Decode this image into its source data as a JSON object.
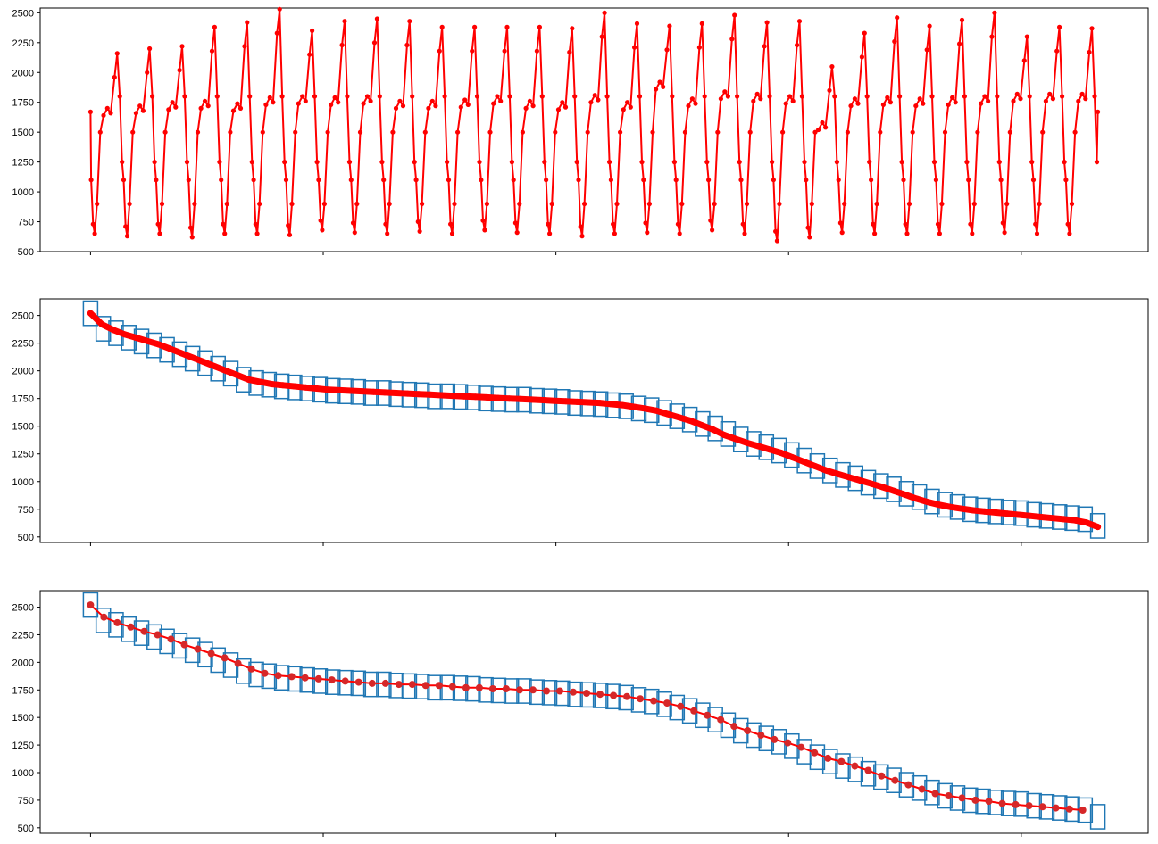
{
  "chart_data": [
    {
      "type": "line",
      "marker": "dot",
      "title": "",
      "xlabel": "",
      "ylabel": "",
      "xlim": [
        -0.05,
        1.05
      ],
      "ylim": [
        500,
        2540
      ],
      "yticks": [
        500,
        750,
        1000,
        1250,
        1500,
        1750,
        2000,
        2250,
        2500
      ],
      "xticks": [
        0,
        0.231,
        0.462,
        0.693,
        0.924
      ],
      "x_tick_labels_shown": false,
      "colors": {
        "series": "#ff0000"
      },
      "series": [
        {
          "cycles": 31,
          "peaks": [
            2160,
            2200,
            2220,
            2380,
            2420,
            2530,
            2350,
            2430,
            2450,
            2430,
            2380,
            2380,
            2380,
            2380,
            2370,
            2500,
            2410,
            2390,
            2410,
            2480,
            2420,
            2430,
            2050,
            2330,
            2460,
            2390,
            2440,
            2500,
            2300,
            2380,
            2370
          ],
          "troughs": [
            650,
            630,
            650,
            620,
            650,
            650,
            640,
            680,
            660,
            650,
            670,
            650,
            680,
            660,
            650,
            630,
            650,
            660,
            650,
            680,
            650,
            590,
            620,
            660,
            650,
            650,
            650,
            650,
            660,
            650,
            650
          ],
          "plateau": [
            1700,
            1720,
            1750,
            1760,
            1740,
            1790,
            1800,
            1790,
            1800,
            1760,
            1760,
            1770,
            1800,
            1760,
            1750,
            1810,
            1750,
            1920,
            1780,
            1840,
            1820,
            1800,
            1580,
            1780,
            1790,
            1780,
            1790,
            1800,
            1820,
            1820,
            1820
          ],
          "start_value": 1670,
          "end_value": 1670
        }
      ]
    },
    {
      "type": "scatter",
      "title": "",
      "xlabel": "",
      "ylabel": "",
      "xlim": [
        -0.05,
        1.05
      ],
      "ylim": [
        450,
        2650
      ],
      "yticks": [
        500,
        750,
        1000,
        1250,
        1500,
        1750,
        2000,
        2250,
        2500
      ],
      "xticks": [
        0,
        0.231,
        0.462,
        0.693,
        0.924
      ],
      "x_tick_labels_shown": false,
      "colors": {
        "series": "#ff0000",
        "boxes": "#1f77b4"
      },
      "series": [
        {
          "sorted_values": [
            2520,
            2420,
            2370,
            2330,
            2300,
            2270,
            2240,
            2200,
            2160,
            2120,
            2080,
            2040,
            2000,
            1960,
            1920,
            1900,
            1880,
            1870,
            1860,
            1850,
            1840,
            1830,
            1825,
            1820,
            1815,
            1810,
            1805,
            1800,
            1795,
            1790,
            1785,
            1780,
            1775,
            1770,
            1765,
            1760,
            1755,
            1750,
            1745,
            1740,
            1735,
            1730,
            1725,
            1720,
            1715,
            1710,
            1700,
            1690,
            1675,
            1660,
            1640,
            1610,
            1580,
            1550,
            1510,
            1470,
            1420,
            1385,
            1350,
            1320,
            1290,
            1260,
            1220,
            1180,
            1140,
            1100,
            1070,
            1040,
            1010,
            980,
            950,
            915,
            880,
            845,
            815,
            790,
            770,
            755,
            740,
            730,
            720,
            710,
            700,
            690,
            680,
            670,
            660,
            650,
            630,
            590
          ]
        }
      ],
      "boxes": [
        2520,
        2380,
        2340,
        2300,
        2265,
        2230,
        2190,
        2150,
        2110,
        2070,
        2020,
        1975,
        1920,
        1890,
        1875,
        1860,
        1850,
        1840,
        1830,
        1820,
        1815,
        1810,
        1800,
        1800,
        1790,
        1785,
        1780,
        1770,
        1770,
        1765,
        1760,
        1750,
        1745,
        1740,
        1740,
        1730,
        1725,
        1720,
        1710,
        1705,
        1700,
        1690,
        1680,
        1660,
        1645,
        1620,
        1590,
        1560,
        1520,
        1480,
        1430,
        1380,
        1340,
        1310,
        1280,
        1240,
        1190,
        1140,
        1100,
        1060,
        1030,
        990,
        960,
        930,
        890,
        860,
        820,
        790,
        770,
        750,
        740,
        730,
        720,
        715,
        700,
        690,
        680,
        670,
        660,
        600
      ]
    },
    {
      "type": "line",
      "marker": "circle",
      "title": "",
      "xlabel": "",
      "ylabel": "",
      "xlim": [
        -0.05,
        1.05
      ],
      "ylim": [
        450,
        2650
      ],
      "yticks": [
        500,
        750,
        1000,
        1250,
        1500,
        1750,
        2000,
        2250,
        2500
      ],
      "xticks": [
        0,
        0.231,
        0.462,
        0.693,
        0.924
      ],
      "x_tick_labels_shown": false,
      "colors": {
        "series": "#ff0000",
        "marker_fill": "#d62728",
        "boxes": "#1f77b4"
      },
      "series": [
        {
          "values": [
            2520,
            2410,
            2360,
            2320,
            2280,
            2250,
            2210,
            2160,
            2120,
            2080,
            2040,
            1990,
            1940,
            1900,
            1880,
            1870,
            1860,
            1850,
            1840,
            1830,
            1820,
            1810,
            1810,
            1800,
            1800,
            1790,
            1790,
            1780,
            1770,
            1770,
            1760,
            1760,
            1750,
            1750,
            1740,
            1740,
            1730,
            1720,
            1710,
            1700,
            1690,
            1670,
            1650,
            1630,
            1600,
            1560,
            1520,
            1480,
            1420,
            1380,
            1340,
            1300,
            1270,
            1230,
            1180,
            1130,
            1100,
            1060,
            1020,
            970,
            930,
            890,
            850,
            810,
            790,
            770,
            750,
            740,
            720,
            710,
            700,
            690,
            680,
            670,
            660
          ]
        }
      ],
      "boxes": [
        2520,
        2380,
        2340,
        2300,
        2265,
        2230,
        2190,
        2150,
        2110,
        2070,
        2020,
        1975,
        1920,
        1890,
        1875,
        1860,
        1850,
        1840,
        1830,
        1820,
        1815,
        1810,
        1800,
        1800,
        1790,
        1785,
        1780,
        1770,
        1770,
        1765,
        1760,
        1750,
        1745,
        1740,
        1740,
        1730,
        1725,
        1720,
        1710,
        1705,
        1700,
        1690,
        1680,
        1660,
        1645,
        1620,
        1590,
        1560,
        1520,
        1480,
        1430,
        1380,
        1340,
        1310,
        1280,
        1240,
        1190,
        1140,
        1100,
        1060,
        1030,
        990,
        960,
        930,
        890,
        860,
        820,
        790,
        770,
        750,
        740,
        730,
        720,
        715,
        700,
        690,
        680,
        670,
        660,
        600
      ]
    }
  ]
}
